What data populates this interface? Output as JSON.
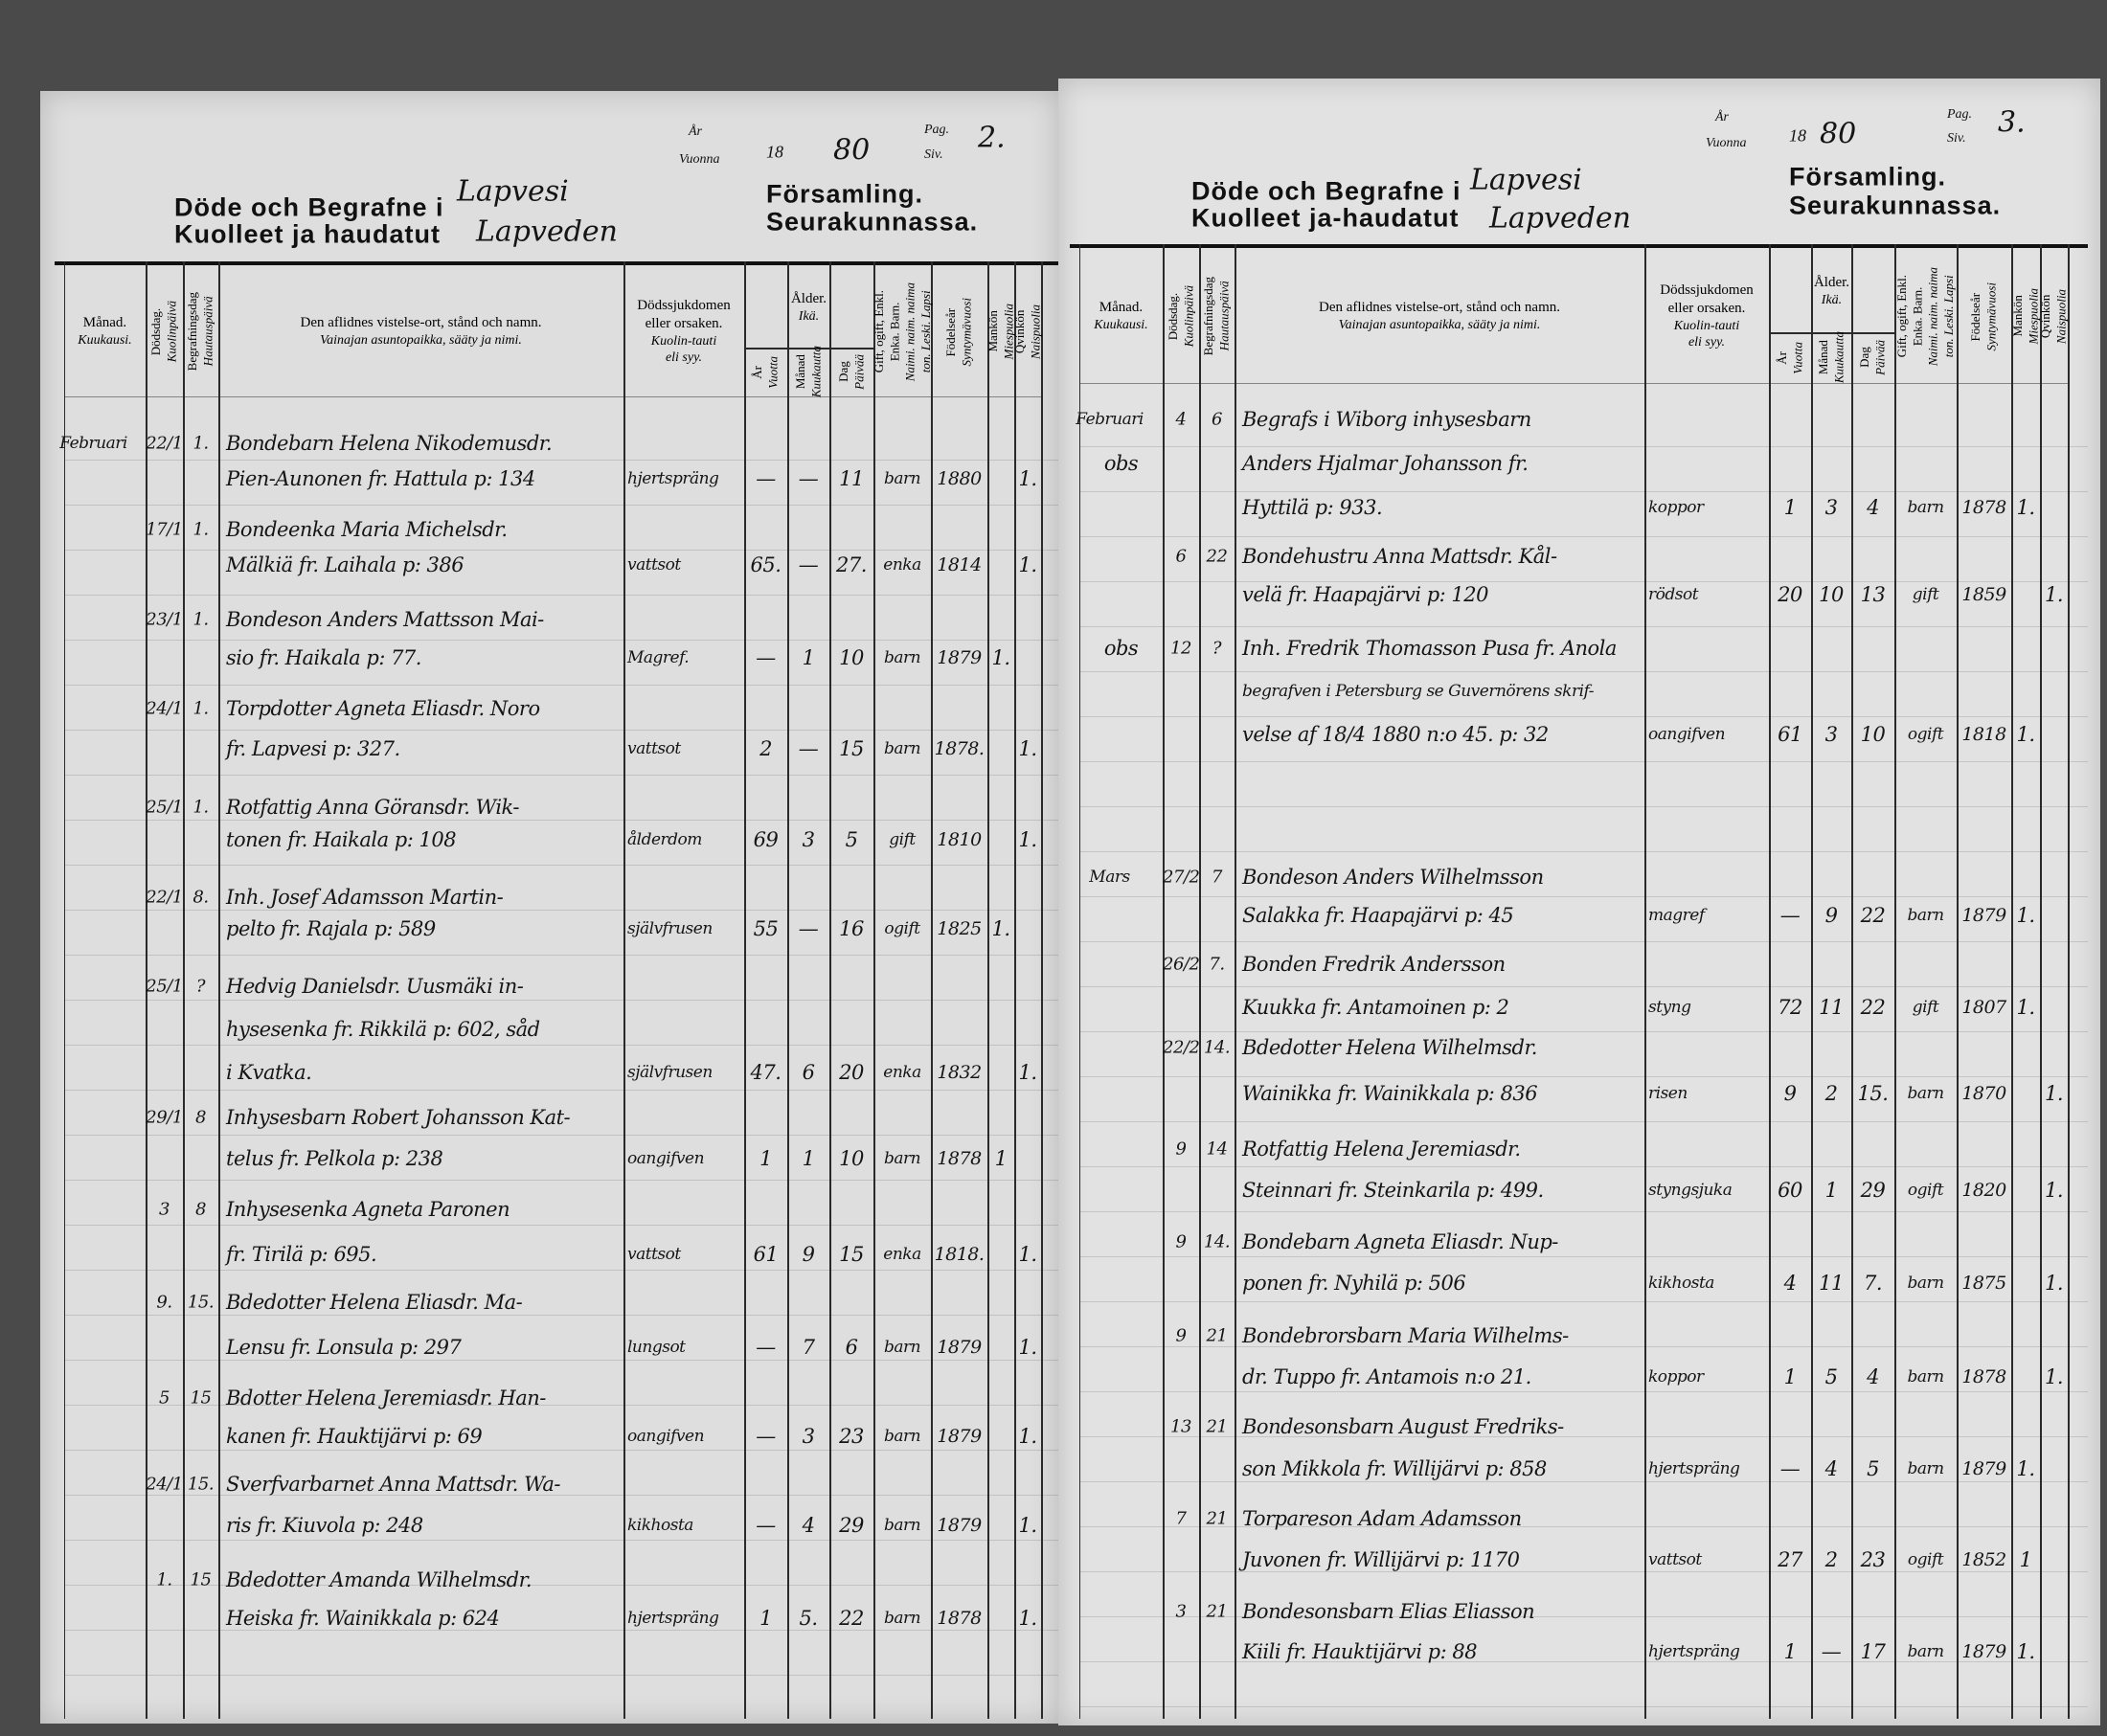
{
  "pages": [
    {
      "header": {
        "year_label_sv": "År",
        "year_label_fi": "Vuonna",
        "year_prefix": "18",
        "year_suffix": "80",
        "page_label_sv": "Pag.",
        "page_label_fi": "Siv.",
        "page_number": "2.",
        "title_sv": "Döde och Begrafne i",
        "title_fi": "Kuolleet ja haudatut",
        "parish_sv": "Lapvesi",
        "parish_fi": "Lapveden",
        "congregation_sv": "Församling.",
        "congregation_fi": "Seurakunnassa."
      },
      "entries": [
        {
          "month": "Februari",
          "death_day": "22/1",
          "burial_day": "1.",
          "lines": [
            "Bondebarn Helena Nikodemusdr.",
            "Pien-Aunonen fr. Hattula p: 134"
          ],
          "cause": "hjertspräng",
          "age_years": "—",
          "age_months": "—",
          "age_days": "11",
          "civil_status": "barn",
          "birth_year": "1880",
          "male": "",
          "female": "1."
        },
        {
          "month": "",
          "death_day": "17/1",
          "burial_day": "1.",
          "lines": [
            "Bondeenka Maria Michelsdr.",
            "Mälkiä fr. Laihala p: 386"
          ],
          "cause": "vattsot",
          "age_years": "65.",
          "age_months": "—",
          "age_days": "27.",
          "civil_status": "enka",
          "birth_year": "1814",
          "male": "",
          "female": "1."
        },
        {
          "month": "",
          "death_day": "23/1",
          "burial_day": "1.",
          "lines": [
            "Bondeson Anders Mattsson Mai-",
            "sio fr. Haikala p: 77."
          ],
          "cause": "Magref.",
          "age_years": "—",
          "age_months": "1",
          "age_days": "10",
          "civil_status": "barn",
          "birth_year": "1879",
          "male": "1.",
          "female": ""
        },
        {
          "month": "",
          "death_day": "24/1",
          "burial_day": "1.",
          "lines": [
            "Torpdotter Agneta Eliasdr. Noro",
            "fr. Lapvesi p: 327."
          ],
          "cause": "vattsot",
          "age_years": "2",
          "age_months": "—",
          "age_days": "15",
          "civil_status": "barn",
          "birth_year": "1878.",
          "male": "",
          "female": "1."
        },
        {
          "month": "",
          "death_day": "25/1",
          "burial_day": "1.",
          "lines": [
            "Rotfattig Anna Göransdr. Wik-",
            "tonen fr. Haikala p: 108"
          ],
          "cause": "ålderdom",
          "age_years": "69",
          "age_months": "3",
          "age_days": "5",
          "civil_status": "gift",
          "birth_year": "1810",
          "male": "",
          "female": "1."
        },
        {
          "month": "",
          "death_day": "22/1",
          "burial_day": "8.",
          "lines": [
            "Inh. Josef Adamsson Martin-",
            "pelto fr. Rajala p: 589"
          ],
          "cause": "självfrusen",
          "age_years": "55",
          "age_months": "—",
          "age_days": "16",
          "civil_status": "ogift",
          "birth_year": "1825",
          "male": "1.",
          "female": ""
        },
        {
          "month": "",
          "death_day": "25/1",
          "burial_day": "?",
          "lines": [
            "Hedvig Danielsdr. Uusmäki in-",
            "hysesenka fr. Rikkilä p: 602, såd",
            "i Kvatka."
          ],
          "cause": "självfrusen",
          "age_years": "47.",
          "age_months": "6",
          "age_days": "20",
          "civil_status": "enka",
          "birth_year": "1832",
          "male": "",
          "female": "1."
        },
        {
          "month": "",
          "death_day": "29/1",
          "burial_day": "8",
          "lines": [
            "Inhysesbarn Robert Johansson Kat-",
            "telus fr. Pelkola p: 238"
          ],
          "cause": "oangifven",
          "age_years": "1",
          "age_months": "1",
          "age_days": "10",
          "civil_status": "barn",
          "birth_year": "1878",
          "male": "1",
          "female": ""
        },
        {
          "month": "",
          "death_day": "3",
          "burial_day": "8",
          "lines": [
            "Inhysesenka Agneta Paronen",
            "fr. Tirilä p: 695."
          ],
          "cause": "vattsot",
          "age_years": "61",
          "age_months": "9",
          "age_days": "15",
          "civil_status": "enka",
          "birth_year": "1818.",
          "male": "",
          "female": "1."
        },
        {
          "month": "",
          "death_day": "9.",
          "burial_day": "15.",
          "lines": [
            "Bdedotter Helena Eliasdr. Ma-",
            "Lensu fr. Lonsula p: 297"
          ],
          "cause": "lungsot",
          "age_years": "—",
          "age_months": "7",
          "age_days": "6",
          "civil_status": "barn",
          "birth_year": "1879",
          "male": "",
          "female": "1."
        },
        {
          "month": "",
          "death_day": "5",
          "burial_day": "15",
          "lines": [
            "Bdotter Helena Jeremiasdr. Han-",
            "kanen fr. Hauktijärvi p: 69"
          ],
          "cause": "oangifven",
          "age_years": "—",
          "age_months": "3",
          "age_days": "23",
          "civil_status": "barn",
          "birth_year": "1879",
          "male": "",
          "female": "1."
        },
        {
          "month": "",
          "death_day": "24/1",
          "burial_day": "15.",
          "lines": [
            "Sverfvarbarnet Anna Mattsdr. Wa-",
            "ris fr. Kiuvola p: 248"
          ],
          "cause": "kikhosta",
          "age_years": "—",
          "age_months": "4",
          "age_days": "29",
          "civil_status": "barn",
          "birth_year": "1879",
          "male": "",
          "female": "1."
        },
        {
          "month": "",
          "death_day": "1.",
          "burial_day": "15",
          "lines": [
            "Bdedotter Amanda Wilhelmsdr.",
            "Heiska fr. Wainikkala p: 624"
          ],
          "cause": "hjertspräng",
          "age_years": "1",
          "age_months": "5.",
          "age_days": "22",
          "civil_status": "barn",
          "birth_year": "1878",
          "male": "",
          "female": "1."
        }
      ]
    },
    {
      "header": {
        "year_label_sv": "År",
        "year_label_fi": "Vuonna",
        "year_prefix": "18",
        "year_suffix": "80",
        "page_label_sv": "Pag.",
        "page_label_fi": "Siv.",
        "page_number": "3.",
        "title_sv": "Döde och Begrafne i",
        "title_fi": "Kuolleet ja-haudatut",
        "parish_sv": "Lapvesi",
        "parish_fi": "Lapveden",
        "congregation_sv": "Församling.",
        "congregation_fi": "Seurakunnassa."
      },
      "entries": [
        {
          "month": "Februari",
          "note": "obs",
          "death_day": "4",
          "burial_day": "6",
          "lines": [
            "Begrafs i Wiborg inhysesbarn",
            "Anders Hjalmar Johansson fr.",
            "Hyttilä p: 933."
          ],
          "cause": "koppor",
          "age_years": "1",
          "age_months": "3",
          "age_days": "4",
          "civil_status": "barn",
          "birth_year": "1878",
          "male": "1.",
          "female": ""
        },
        {
          "month": "",
          "death_day": "6",
          "burial_day": "22",
          "lines": [
            "Bondehustru Anna Mattsdr. Kål-",
            "velä fr. Haapajärvi p: 120"
          ],
          "cause": "rödsot",
          "age_years": "20",
          "age_months": "10",
          "age_days": "13",
          "civil_status": "gift",
          "birth_year": "1859",
          "male": "",
          "female": "1."
        },
        {
          "month": "",
          "note": "obs",
          "death_day": "12",
          "burial_day": "?",
          "lines": [
            "Inh. Fredrik Thomasson Pusa fr. Anola",
            "begrafven i Petersburg se Guvernörens skrif-",
            "velse af 18/4 1880 n:o 45. p: 32"
          ],
          "cause": "oangifven",
          "age_years": "61",
          "age_months": "3",
          "age_days": "10",
          "civil_status": "ogift",
          "birth_year": "1818",
          "male": "1.",
          "female": ""
        },
        {
          "month": "Mars",
          "death_day": "27/2",
          "burial_day": "7",
          "lines": [
            "Bondeson Anders Wilhelmsson",
            "Salakka fr. Haapajärvi p: 45"
          ],
          "cause": "magref",
          "age_years": "—",
          "age_months": "9",
          "age_days": "22",
          "civil_status": "barn",
          "birth_year": "1879",
          "male": "1.",
          "female": ""
        },
        {
          "month": "",
          "death_day": "26/2",
          "burial_day": "7.",
          "lines": [
            "Bonden Fredrik Andersson",
            "Kuukka fr. Antamoinen p: 2"
          ],
          "cause": "styng",
          "age_years": "72",
          "age_months": "11",
          "age_days": "22",
          "civil_status": "gift",
          "birth_year": "1807",
          "male": "1.",
          "female": ""
        },
        {
          "month": "",
          "death_day": "22/2",
          "burial_day": "14.",
          "lines": [
            "Bdedotter Helena Wilhelmsdr.",
            "Wainikka fr. Wainikkala p: 836"
          ],
          "cause": "risen",
          "age_years": "9",
          "age_months": "2",
          "age_days": "15.",
          "civil_status": "barn",
          "birth_year": "1870",
          "male": "",
          "female": "1."
        },
        {
          "month": "",
          "death_day": "9",
          "burial_day": "14",
          "lines": [
            "Rotfattig Helena Jeremiasdr.",
            "Steinnari fr. Steinkarila p: 499."
          ],
          "cause": "styngsjuka",
          "age_years": "60",
          "age_months": "1",
          "age_days": "29",
          "civil_status": "ogift",
          "birth_year": "1820",
          "male": "",
          "female": "1."
        },
        {
          "month": "",
          "death_day": "9",
          "burial_day": "14.",
          "lines": [
            "Bondebarn Agneta Eliasdr. Nup-",
            "ponen fr. Nyhilä p: 506"
          ],
          "cause": "kikhosta",
          "age_years": "4",
          "age_months": "11",
          "age_days": "7.",
          "civil_status": "barn",
          "birth_year": "1875",
          "male": "",
          "female": "1."
        },
        {
          "month": "",
          "death_day": "9",
          "burial_day": "21",
          "lines": [
            "Bondebrorsbarn Maria Wilhelms-",
            "dr. Tuppo fr. Antamois n:o 21."
          ],
          "cause": "koppor",
          "age_years": "1",
          "age_months": "5",
          "age_days": "4",
          "civil_status": "barn",
          "birth_year": "1878",
          "male": "",
          "female": "1."
        },
        {
          "month": "",
          "death_day": "13",
          "burial_day": "21",
          "lines": [
            "Bondesonsbarn August Fredriks-",
            "son Mikkola fr. Willijärvi p: 858"
          ],
          "cause": "hjertspräng",
          "age_years": "—",
          "age_months": "4",
          "age_days": "5",
          "civil_status": "barn",
          "birth_year": "1879",
          "male": "1.",
          "female": ""
        },
        {
          "month": "",
          "death_day": "7",
          "burial_day": "21",
          "lines": [
            "Torpareson Adam Adamsson",
            "Juvonen fr. Willijärvi p: 1170"
          ],
          "cause": "vattsot",
          "age_years": "27",
          "age_months": "2",
          "age_days": "23",
          "civil_status": "ogift",
          "birth_year": "1852",
          "male": "1",
          "female": ""
        },
        {
          "month": "",
          "death_day": "3",
          "burial_day": "21",
          "lines": [
            "Bondesonsbarn Elias Eliasson",
            "Kiili fr. Hauktijärvi p: 88"
          ],
          "cause": "hjertspräng",
          "age_years": "1",
          "age_months": "—",
          "age_days": "17",
          "civil_status": "barn",
          "birth_year": "1879",
          "male": "1.",
          "female": ""
        }
      ]
    }
  ],
  "columns": {
    "month": [
      "Månad.",
      "Kuukausi."
    ],
    "death_day": [
      "Dödsdag.",
      "Kuolinpäivä"
    ],
    "burial_day": [
      "Begrafningsdag",
      "Hautauspäivä"
    ],
    "description": [
      "Den aflidnes vistelse-ort, stånd och namn.",
      "Vainajan asuntopaikka, sääty ja nimi."
    ],
    "cause": [
      "Dödssjukdomen",
      "eller orsaken.",
      "Kuolin-tauti",
      "eli syy."
    ],
    "age": [
      "Ålder.",
      "Ikä."
    ],
    "age_years": [
      "År",
      "Vuotta"
    ],
    "age_months": [
      "Månad",
      "Kuukautta"
    ],
    "age_days": [
      "Dag",
      "Päivää"
    ],
    "civil_status": [
      "Gift, ogift, Enkl.",
      "Enka. Barn.",
      "Naimi. naim. naima",
      "ton. Leski. Lapsi"
    ],
    "birth_year": [
      "Födelseår",
      "Syntymävuosi"
    ],
    "male": [
      "Mankön",
      "Miespuolia"
    ],
    "female": [
      "Qvinkön",
      "Naispuolia"
    ]
  }
}
